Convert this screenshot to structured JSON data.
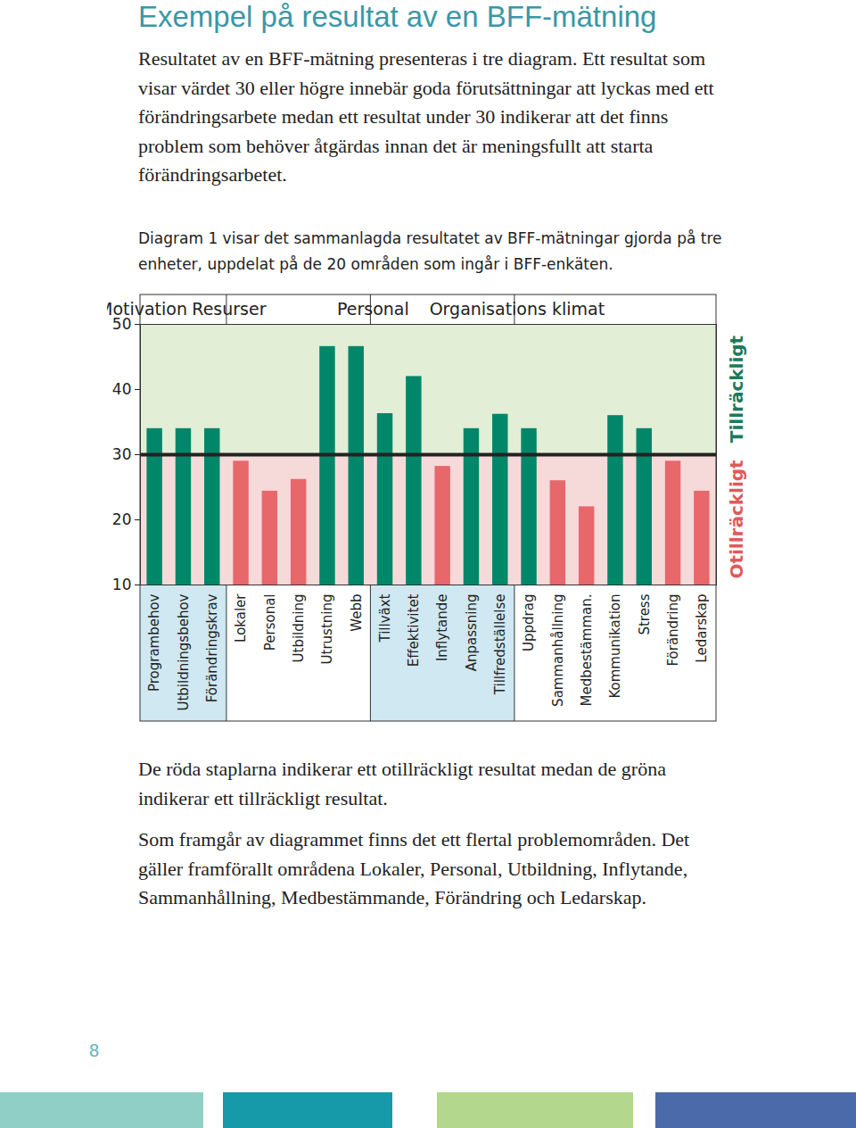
{
  "document": {
    "title": "Exempel på resultat av en BFF-mätning",
    "intro": "Resultatet av en BFF-mätning presenteras i tre diagram. Ett resultat som visar värdet 30 eller högre innebär goda förutsättningar att lyckas med ett förändringsarbete medan ett resultat under 30 indikerar att det finns problem som behöver åtgärdas innan det är meningsfullt att starta förändringsarbetet.",
    "diagram_intro": "Diagram 1 visar det sammanlagda resultatet av BFF-mätningar gjorda på tre enheter, uppdelat på de 20 områden som ingår i BFF-enkäten.",
    "captions": [
      "De röda staplarna indikerar ett otillräckligt resultat medan de gröna indikerar ett tillräckligt resultat.",
      "Som framgår av diagrammet finns det ett flertal problemområden. Det gäller framförallt områdena Lokaler, Personal, Utbildning, Inflytande, Sammanhållning, Medbestämmande, Förändring och Ledarskap."
    ],
    "page_number": "8"
  },
  "chart_data": {
    "type": "bar",
    "categories": [
      "Programbehov",
      "Utbildningsbehov",
      "Förändringskrav",
      "Lokaler",
      "Personal",
      "Utbildning",
      "Utrustning",
      "Webb",
      "Tillväxt",
      "Effektivitet",
      "Inflytande",
      "Anpassning",
      "Tillfredställelse",
      "Uppdrag",
      "Sammanhållning",
      "Medbestämman.",
      "Kommunikation",
      "Stress",
      "Förändring",
      "Ledarskap"
    ],
    "category_groups": [
      "Motivation",
      "Motivation",
      "Motivation",
      "Resurser",
      "Resurser",
      "Resurser",
      "Resurser",
      "Resurser",
      "Personal",
      "Personal",
      "Personal",
      "Personal",
      "Personal",
      "Organisations klimat",
      "Organisations klimat",
      "Organisations klimat",
      "Organisations klimat",
      "Organisations klimat",
      "Organisations klimat",
      "Organisations klimat"
    ],
    "values": [
      34,
      34,
      34,
      29,
      24.4,
      26.2,
      46.6,
      46.6,
      36.3,
      42,
      28.2,
      34,
      36.2,
      34,
      26,
      22,
      36,
      34,
      29,
      24.4
    ],
    "colors": [
      "#00876a",
      "#00876a",
      "#00876a",
      "#e8676a",
      "#e8676a",
      "#e8676a",
      "#00876a",
      "#00876a",
      "#00876a",
      "#00876a",
      "#e8676a",
      "#00876a",
      "#00876a",
      "#00876a",
      "#e8676a",
      "#e8676a",
      "#00876a",
      "#00876a",
      "#e8676a",
      "#e8676a"
    ],
    "ylim": [
      10,
      50
    ],
    "yticks": [
      10,
      20,
      30,
      40,
      50
    ],
    "threshold": 30,
    "annotations": {
      "above_threshold": "Tillräckligt",
      "below_threshold": "Otillräckligt"
    }
  }
}
